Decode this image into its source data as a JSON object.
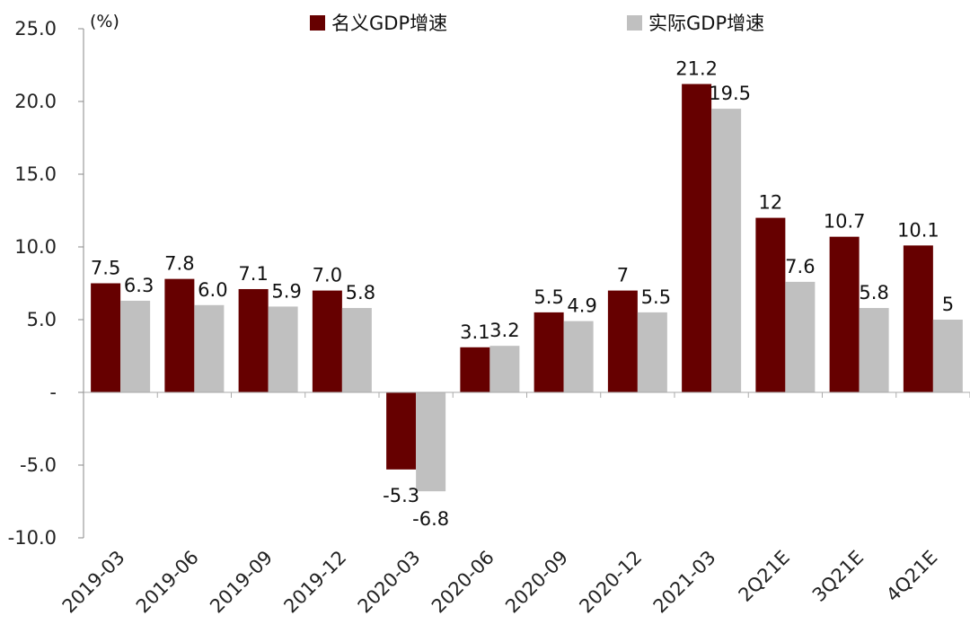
{
  "chart_data": {
    "type": "bar",
    "unit_label": "(%)",
    "categories": [
      "2019-03",
      "2019-06",
      "2019-09",
      "2019-12",
      "2020-03",
      "2020-06",
      "2020-09",
      "2020-12",
      "2021-03",
      "2Q21E",
      "3Q21E",
      "4Q21E"
    ],
    "series": [
      {
        "name": "名义GDP增速",
        "color": "#660000",
        "values": [
          7.5,
          7.8,
          7.1,
          7.0,
          -5.3,
          3.1,
          5.5,
          7,
          21.2,
          12,
          10.7,
          10.1
        ],
        "labels": [
          "7.5",
          "7.8",
          "7.1",
          "7.0",
          "-5.3",
          "3.1",
          "5.5",
          "7",
          "21.2",
          "12",
          "10.7",
          "10.1"
        ]
      },
      {
        "name": "实际GDP增速",
        "color": "#c0c0c0",
        "values": [
          6.3,
          6.0,
          5.9,
          5.8,
          -6.8,
          3.2,
          4.9,
          5.5,
          19.5,
          7.6,
          5.8,
          5
        ],
        "labels": [
          "6.3",
          "6.0",
          "5.9",
          "5.8",
          "-6.8",
          "3.2",
          "4.9",
          "5.5",
          "19.5",
          "7.6",
          "5.8",
          "5"
        ]
      }
    ],
    "y_ticks": [
      25,
      20,
      15,
      10,
      5,
      0,
      -5,
      -10
    ],
    "y_tick_labels": [
      "25.0",
      "20.0",
      "15.0",
      "10.0",
      "5.0",
      "-",
      "-5.0",
      "-10.0"
    ],
    "ylim": [
      -10,
      25
    ],
    "legend": "top-center",
    "grid": false
  }
}
